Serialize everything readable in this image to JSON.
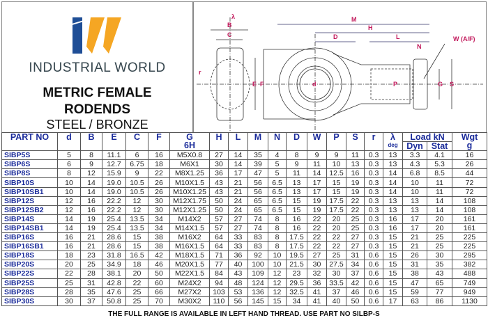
{
  "brand": {
    "name": "INDUSTRIAL WORLD",
    "logo_colors": {
      "blue": "#1f4e96",
      "orange": "#f5a623"
    }
  },
  "title": {
    "line1": "METRIC FEMALE",
    "line2": "RODENDS",
    "material": "STEEL / BRONZE"
  },
  "drawing": {
    "labels": {
      "lambda": "λ",
      "B": "B",
      "C": "C",
      "r": "r",
      "E": "E",
      "F": "F",
      "M": "M",
      "H": "H",
      "D": "D",
      "L": "L",
      "N": "N",
      "W": "W (A/F)",
      "d": "d",
      "P": "P",
      "G": "G",
      "S": "S"
    },
    "dimension_color": "#c2185b"
  },
  "table": {
    "headers": {
      "part_no": "PART NO",
      "d": "d",
      "B": "B",
      "E": "E",
      "C": "C",
      "F": "F",
      "G": "G",
      "G_sub": "6H",
      "H": "H",
      "L": "L",
      "M": "M",
      "N": "N",
      "D": "D",
      "W": "W",
      "P": "P",
      "S": "S",
      "r": "r",
      "lambda": "λ",
      "lambda_sub": "deg",
      "load": "Load kN",
      "dyn": "Dyn",
      "stat": "Stat",
      "wgt": "Wgt",
      "wgt_sub": "g"
    },
    "rows": [
      [
        "SIBP5S",
        "5",
        "8",
        "11.1",
        "6",
        "16",
        "M5X0.8",
        "27",
        "14",
        "35",
        "4",
        "8",
        "9",
        "9",
        "11",
        "0.3",
        "13",
        "3.3",
        "4.1",
        "16"
      ],
      [
        "SIBP6S",
        "6",
        "9",
        "12.7",
        "6.75",
        "18",
        "M6X1",
        "30",
        "14",
        "39",
        "5",
        "9",
        "11",
        "10",
        "13",
        "0.3",
        "13",
        "4.3",
        "5.3",
        "26"
      ],
      [
        "SIBP8S",
        "8",
        "12",
        "15.9",
        "9",
        "22",
        "M8X1.25",
        "36",
        "17",
        "47",
        "5",
        "11",
        "14",
        "12.5",
        "16",
        "0.3",
        "14",
        "6.8",
        "8.5",
        "44"
      ],
      [
        "SIBP10S",
        "10",
        "14",
        "19.0",
        "10.5",
        "26",
        "M10X1.5",
        "43",
        "21",
        "56",
        "6.5",
        "13",
        "17",
        "15",
        "19",
        "0.3",
        "14",
        "10",
        "11",
        "72"
      ],
      [
        "SIBP10SB1",
        "10",
        "14",
        "19.0",
        "10.5",
        "26",
        "M10X1.25",
        "43",
        "21",
        "56",
        "6.5",
        "13",
        "17",
        "15",
        "19",
        "0.3",
        "14",
        "10",
        "11",
        "72"
      ],
      [
        "SIBP12S",
        "12",
        "16",
        "22.2",
        "12",
        "30",
        "M12X1.75",
        "50",
        "24",
        "65",
        "6.5",
        "15",
        "19",
        "17.5",
        "22",
        "0.3",
        "13",
        "13",
        "14",
        "108"
      ],
      [
        "SIBP12SB2",
        "12",
        "16",
        "22.2",
        "12",
        "30",
        "M12X1.25",
        "50",
        "24",
        "65",
        "6.5",
        "15",
        "19",
        "17.5",
        "22",
        "0.3",
        "13",
        "13",
        "14",
        "108"
      ],
      [
        "SIBP14S",
        "14",
        "19",
        "25.4",
        "13.5",
        "34",
        "M14X2",
        "57",
        "27",
        "74",
        "8",
        "16",
        "22",
        "20",
        "25",
        "0.3",
        "16",
        "17",
        "20",
        "161"
      ],
      [
        "SIBP14SB1",
        "14",
        "19",
        "25.4",
        "13.5",
        "34",
        "M14X1.5",
        "57",
        "27",
        "74",
        "8",
        "16",
        "22",
        "20",
        "25",
        "0.3",
        "16",
        "17",
        "20",
        "161"
      ],
      [
        "SIBP16S",
        "16",
        "21",
        "28.6",
        "15",
        "38",
        "M16X2",
        "64",
        "33",
        "83",
        "8",
        "17.5",
        "22",
        "22",
        "27",
        "0.3",
        "15",
        "21",
        "25",
        "225"
      ],
      [
        "SIBP16SB1",
        "16",
        "21",
        "28.6",
        "15",
        "38",
        "M16X1.5",
        "64",
        "33",
        "83",
        "8",
        "17.5",
        "22",
        "22",
        "27",
        "0.3",
        "15",
        "21",
        "25",
        "225"
      ],
      [
        "SIBP18S",
        "18",
        "23",
        "31.8",
        "16.5",
        "42",
        "M18X1.5",
        "71",
        "36",
        "92",
        "10",
        "19.5",
        "27",
        "25",
        "31",
        "0.6",
        "15",
        "26",
        "30",
        "295"
      ],
      [
        "SIBP20S",
        "20",
        "25",
        "34.9",
        "18",
        "46",
        "M20X1.5",
        "77",
        "40",
        "100",
        "10",
        "21.5",
        "30",
        "27.5",
        "34",
        "0.6",
        "15",
        "31",
        "35",
        "382"
      ],
      [
        "SIBP22S",
        "22",
        "28",
        "38.1",
        "20",
        "50",
        "M22X1.5",
        "84",
        "43",
        "109",
        "12",
        "23",
        "32",
        "30",
        "37",
        "0.6",
        "15",
        "38",
        "43",
        "488"
      ],
      [
        "SIBP25S",
        "25",
        "31",
        "42.8",
        "22",
        "60",
        "M24X2",
        "94",
        "48",
        "124",
        "12",
        "29.5",
        "36",
        "33.5",
        "42",
        "0.6",
        "15",
        "47",
        "65",
        "749"
      ],
      [
        "SIBP28S",
        "28",
        "35",
        "47.6",
        "25",
        "66",
        "M27X2",
        "103",
        "53",
        "136",
        "12",
        "32.5",
        "41",
        "37",
        "46",
        "0.6",
        "15",
        "59",
        "77",
        "949"
      ],
      [
        "SIBP30S",
        "30",
        "37",
        "50.8",
        "25",
        "70",
        "M30X2",
        "110",
        "56",
        "145",
        "15",
        "34",
        "41",
        "40",
        "50",
        "0.6",
        "17",
        "63",
        "86",
        "1130"
      ]
    ]
  },
  "footer": "THE FULL RANGE IS AVAILABLE IN LEFT HAND THREAD. USE PART NO SILBP-S"
}
